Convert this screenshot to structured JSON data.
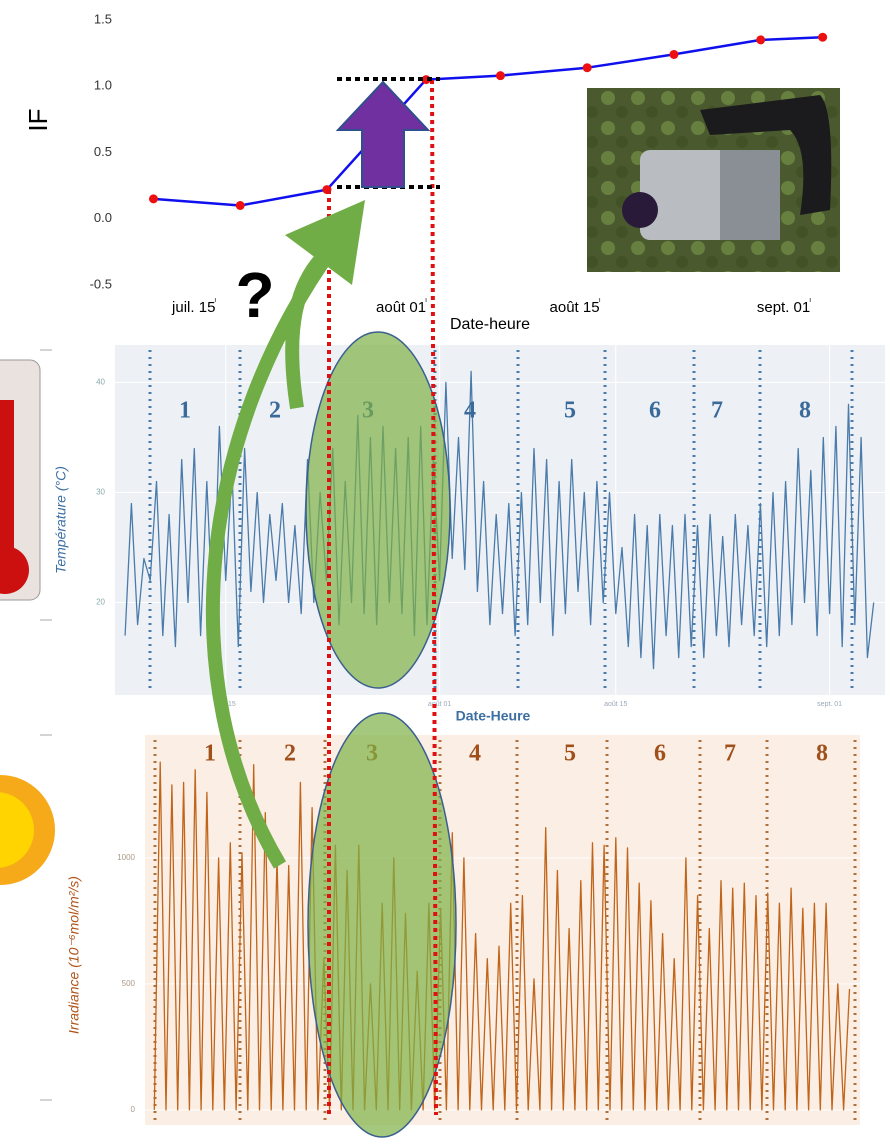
{
  "chart_data": [
    {
      "type": "line",
      "y_label": "IF",
      "x_label": "Date-heure",
      "x": [
        191,
        198,
        205,
        213,
        219,
        226,
        233,
        240,
        245
      ],
      "values": [
        0.15,
        0.1,
        0.22,
        1.05,
        1.08,
        1.14,
        1.24,
        1.35,
        1.37
      ],
      "color": "#1010ee",
      "marker_color": "#ee1010",
      "xlim": [
        188.3,
        246.4
      ],
      "xticks": [
        {
          "value": 196,
          "label": "juil. 15"
        },
        {
          "value": 213,
          "label": "août 01"
        },
        {
          "value": 227,
          "label": "août 15"
        },
        {
          "value": 244,
          "label": "sept. 01"
        }
      ],
      "ylim": [
        -0.5,
        1.5
      ],
      "yticks": [
        -0.5,
        {
          "value": 0,
          "label": "0.0"
        },
        0.5,
        {
          "value": 1,
          "label": "1.0"
        },
        1.5
      ]
    },
    {
      "type": "line",
      "y_label": "Température (°C)",
      "x_label": "Date-Heure",
      "x": [
        188,
        188.5,
        189,
        189.5,
        190,
        190.5,
        191,
        191.5,
        192,
        192.5,
        193,
        193.5,
        194,
        194.5,
        195,
        195.5,
        196,
        196.5,
        197,
        197.5,
        198,
        198.5,
        199,
        199.5,
        200,
        200.5,
        201,
        201.5,
        202,
        202.5,
        203,
        203.5,
        204,
        204.5,
        205,
        205.5,
        206,
        206.5,
        207,
        207.5,
        208,
        208.5,
        209,
        209.5,
        210,
        210.5,
        211,
        211.5,
        212,
        212.5,
        213,
        213.5,
        214,
        214.5,
        215,
        215.5,
        216,
        216.5,
        217,
        217.5,
        218,
        218.5,
        219,
        219.5,
        220,
        220.5,
        221,
        221.5,
        222,
        222.5,
        223,
        223.5,
        224,
        224.5,
        225,
        225.5,
        226,
        226.5,
        227,
        227.5,
        228,
        228.5,
        229,
        229.5,
        230,
        230.5,
        231,
        231.5,
        232,
        232.5,
        233,
        233.5,
        234,
        234.5,
        235,
        235.5,
        236,
        236.5,
        237,
        237.5,
        238,
        238.5,
        239,
        239.5,
        240,
        240.5,
        241,
        241.5,
        242,
        242.5,
        243,
        243.5,
        244,
        244.5,
        245,
        245.5,
        246,
        246.5,
        247,
        247.5
      ],
      "values": [
        17,
        29,
        18,
        24,
        22,
        31,
        17,
        28,
        16,
        33,
        20,
        34,
        17,
        31,
        18,
        36,
        22,
        32,
        16,
        34,
        21,
        30,
        20,
        28,
        22,
        29,
        20,
        27,
        19,
        33,
        20,
        30,
        22,
        34,
        18,
        31,
        20,
        37,
        19,
        35,
        18,
        36,
        20,
        34,
        19,
        35,
        17,
        36,
        18,
        33,
        22,
        40,
        24,
        35,
        23,
        41,
        21,
        31,
        18,
        28,
        19,
        29,
        17,
        30,
        18,
        34,
        20,
        33,
        17,
        31,
        19,
        33,
        21,
        30,
        18,
        31,
        20,
        30,
        19,
        25,
        16,
        28,
        15,
        27,
        14,
        28,
        17,
        27,
        15,
        28,
        16,
        27,
        15,
        28,
        17,
        26,
        16,
        28,
        18,
        27,
        17,
        29,
        16,
        30,
        17,
        31,
        18,
        34,
        20,
        32,
        17,
        35,
        19,
        36,
        16,
        38,
        18,
        35,
        15,
        20
      ],
      "color": "#4a7bab",
      "xlim": [
        187.2,
        248.4
      ],
      "xticks": [
        {
          "value": 196,
          "label": "juil. 15"
        },
        {
          "value": 213,
          "label": "août 01"
        },
        {
          "value": 227,
          "label": "août 15"
        },
        {
          "value": 244,
          "label": "sept. 01"
        }
      ],
      "ylim": [
        11.6,
        43.4
      ],
      "yticks": [
        20,
        30,
        40
      ],
      "grid": true,
      "periods": [
        "1",
        "2",
        "3",
        "4",
        "5",
        "6",
        "7",
        "8"
      ]
    },
    {
      "type": "line",
      "y_label": "Irradiance (10⁻⁶mol/m²/s)",
      "x": [
        188,
        188.5,
        189,
        189.5,
        190,
        190.5,
        191,
        191.5,
        192,
        192.5,
        193,
        193.5,
        194,
        194.5,
        195,
        195.5,
        196,
        196.5,
        197,
        197.5,
        198,
        198.5,
        199,
        199.5,
        200,
        200.5,
        201,
        201.5,
        202,
        202.5,
        203,
        203.5,
        204,
        204.5,
        205,
        205.5,
        206,
        206.5,
        207,
        207.5,
        208,
        208.5,
        209,
        209.5,
        210,
        210.5,
        211,
        211.5,
        212,
        212.5,
        213,
        213.5,
        214,
        214.5,
        215,
        215.5,
        216,
        216.5,
        217,
        217.5,
        218,
        218.5,
        219,
        219.5,
        220,
        220.5,
        221,
        221.5,
        222,
        222.5,
        223,
        223.5,
        224,
        224.5,
        225,
        225.5,
        226,
        226.5,
        227,
        227.5,
        228,
        228.5,
        229,
        229.5,
        230,
        230.5,
        231,
        231.5,
        232,
        232.5,
        233,
        233.5,
        234,
        234.5,
        235,
        235.5,
        236,
        236.5,
        237,
        237.5,
        238,
        238.5,
        239,
        239.5,
        240,
        240.5,
        241,
        241.5,
        242,
        242.5,
        243,
        243.5,
        244,
        244.5,
        245,
        245.5,
        246,
        246.5,
        247,
        247.5
      ],
      "values": [
        0,
        1380,
        0,
        1290,
        0,
        1300,
        0,
        1350,
        0,
        1260,
        0,
        1000,
        0,
        1060,
        0,
        1020,
        0,
        1370,
        0,
        1180,
        0,
        1000,
        0,
        970,
        0,
        1300,
        0,
        1200,
        0,
        600,
        0,
        1050,
        0,
        950,
        0,
        1050,
        0,
        500,
        0,
        820,
        0,
        1000,
        0,
        780,
        0,
        550,
        0,
        820,
        0,
        800,
        0,
        1100,
        0,
        1000,
        0,
        700,
        0,
        600,
        0,
        650,
        0,
        820,
        0,
        850,
        0,
        520,
        0,
        1120,
        0,
        950,
        0,
        720,
        0,
        910,
        0,
        1060,
        0,
        1050,
        0,
        1080,
        0,
        1040,
        0,
        900,
        0,
        830,
        0,
        700,
        0,
        600,
        0,
        1000,
        0,
        850,
        0,
        720,
        0,
        910,
        0,
        880,
        0,
        900,
        0,
        850,
        0,
        860,
        0,
        820,
        0,
        880,
        0,
        800,
        0,
        820,
        0,
        820,
        0,
        500,
        0,
        480
      ],
      "color": "#c0651a",
      "xlim": [
        187.2,
        248.4
      ],
      "ylim": [
        -60,
        1488
      ],
      "yticks": [
        0,
        500,
        1000
      ],
      "grid": true,
      "periods": [
        "1",
        "2",
        "3",
        "4",
        "5",
        "6",
        "7",
        "8"
      ]
    }
  ],
  "overlay": {
    "question": "?"
  }
}
